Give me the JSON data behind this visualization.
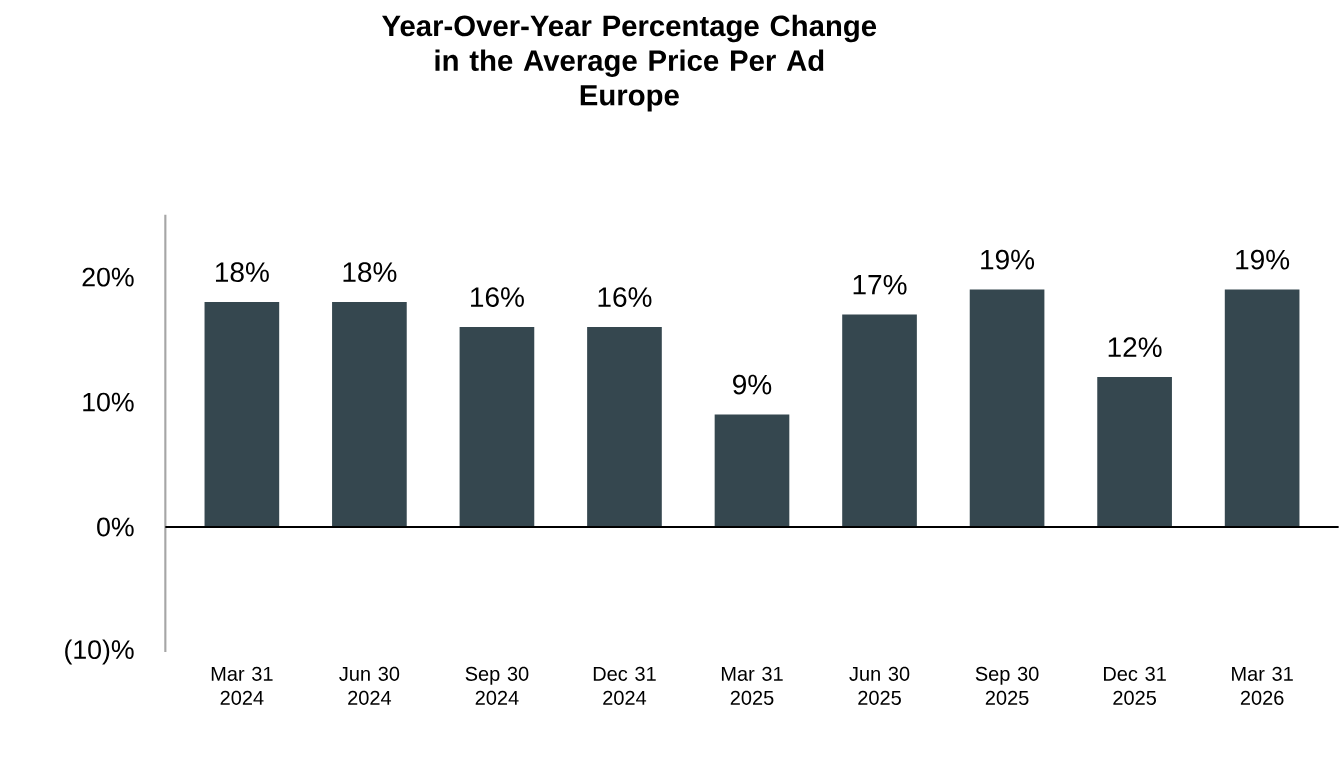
{
  "chart_data": {
    "type": "bar",
    "title": "Year-Over-Year Percentage Change in the Average Price Per Ad",
    "subtitle": "Europe",
    "categories": [
      "Mar 31 2024",
      "Jun 30 2024",
      "Sep 30 2024",
      "Dec 31 2024",
      "Mar 31 2025",
      "Jun 30 2025",
      "Sep 30 2025",
      "Dec 31 2025",
      "Mar 31 2026"
    ],
    "values": [
      18,
      18,
      16,
      16,
      9,
      17,
      19,
      12,
      19
    ],
    "value_labels": [
      "18%",
      "18%",
      "16%",
      "16%",
      "9%",
      "17%",
      "19%",
      "12%",
      "19%"
    ],
    "color": "#35474f",
    "ylim": [
      -10,
      25
    ],
    "yticks": [
      {
        "value": -10,
        "label": "(10)%"
      },
      {
        "value": 0,
        "label": "0%"
      },
      {
        "value": 10,
        "label": "10%"
      },
      {
        "value": 20,
        "label": "20%"
      }
    ]
  }
}
